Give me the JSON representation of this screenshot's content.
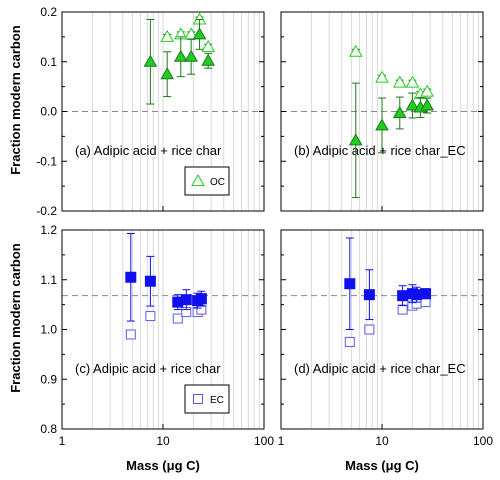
{
  "figure": {
    "ylabel_top": "Fraction modern carbon",
    "ylabel_bottom": "Fraction modern carbon",
    "xlabel_left": "Mass (μg C)",
    "xlabel_right": "Mass (μg C)"
  },
  "colors": {
    "oc": "#22cc22",
    "oc_edge": "#1a7a1a",
    "ec": "#1010ee",
    "ec_open": "#5a5aee",
    "grid": "#d9d9d9",
    "ref_line": "#888888"
  },
  "chart_data": [
    {
      "id": "a",
      "type": "scatter",
      "panel_label": "(a) Adipic acid + rice char",
      "xscale": "log",
      "xlim": [
        1,
        100
      ],
      "ylim": [
        -0.2,
        0.2
      ],
      "yticks": [
        -0.2,
        -0.1,
        0.0,
        0.1,
        0.2
      ],
      "ytick_labels": [
        "-0.2",
        "-0.1",
        "0.0",
        "0.1",
        "0.2"
      ],
      "xticks": [
        1,
        10,
        100
      ],
      "xtick_labels": [
        "",
        "",
        ""
      ],
      "reference_line": 0.0,
      "grid": "vertical",
      "legend": {
        "label": "OC",
        "marker": "open-triangle",
        "placement": "bottom-right"
      },
      "series": [
        {
          "marker": "filled-triangle",
          "color": "oc",
          "x": [
            7.5,
            11,
            15,
            19,
            23,
            28
          ],
          "y": [
            0.1,
            0.075,
            0.11,
            0.11,
            0.155,
            0.102
          ],
          "yerr": [
            0.085,
            0.045,
            0.04,
            0.035,
            0.03,
            0.015
          ]
        },
        {
          "marker": "open-triangle",
          "color": "oc",
          "x": [
            11,
            15,
            19,
            23,
            28
          ],
          "y": [
            0.15,
            0.155,
            0.155,
            0.185,
            0.13
          ],
          "yerr": [
            0.005,
            0.005,
            0.005,
            0.005,
            0.005
          ]
        }
      ]
    },
    {
      "id": "b",
      "type": "scatter",
      "panel_label": "(b) Adipic acid + rice char_EC",
      "xscale": "log",
      "xlim": [
        1,
        100
      ],
      "ylim": [
        -0.2,
        0.2
      ],
      "yticks": [
        -0.2,
        -0.1,
        0.0,
        0.1,
        0.2
      ],
      "ytick_labels": [
        "",
        "",
        "",
        "",
        ""
      ],
      "xticks": [
        1,
        10,
        100
      ],
      "xtick_labels": [
        "",
        "",
        ""
      ],
      "reference_line": 0.0,
      "grid": "vertical",
      "series": [
        {
          "marker": "filled-triangle",
          "color": "oc",
          "x": [
            5.5,
            10,
            15,
            20,
            24,
            28
          ],
          "y": [
            -0.058,
            -0.028,
            -0.003,
            0.012,
            0.008,
            0.012
          ],
          "yerr": [
            0.115,
            0.055,
            0.032,
            0.025,
            0.02,
            0.015
          ]
        },
        {
          "marker": "open-triangle",
          "color": "oc",
          "x": [
            5.5,
            10,
            15,
            20,
            24,
            28
          ],
          "y": [
            0.12,
            0.068,
            0.058,
            0.058,
            0.035,
            0.04
          ],
          "yerr": [
            0.005,
            0.005,
            0.005,
            0.005,
            0.005,
            0.005
          ]
        }
      ]
    },
    {
      "id": "c",
      "type": "scatter",
      "panel_label": "(c) Adipic acid + rice char",
      "xscale": "log",
      "xlim": [
        1,
        100
      ],
      "ylim": [
        0.8,
        1.2
      ],
      "yticks": [
        0.8,
        0.9,
        1.0,
        1.1,
        1.2
      ],
      "ytick_labels": [
        "0.8",
        "0.9",
        "1.0",
        "1.1",
        "1.2"
      ],
      "xticks": [
        1,
        10,
        100
      ],
      "xtick_labels": [
        "1",
        "10",
        "100"
      ],
      "reference_line": 1.068,
      "grid": "vertical",
      "legend": {
        "label": "EC",
        "marker": "open-square",
        "placement": "bottom-right"
      },
      "series": [
        {
          "marker": "filled-square",
          "color": "ec",
          "x": [
            4.8,
            7.5,
            14,
            17,
            22,
            24
          ],
          "y": [
            1.105,
            1.097,
            1.055,
            1.06,
            1.058,
            1.062
          ],
          "yerr": [
            0.088,
            0.05,
            0.015,
            0.02,
            0.015,
            0.015
          ]
        },
        {
          "marker": "open-square",
          "color": "ec",
          "x": [
            4.8,
            7.5,
            14,
            17,
            22,
            24
          ],
          "y": [
            0.99,
            1.027,
            1.022,
            1.035,
            1.035,
            1.04
          ],
          "yerr": [
            0.008,
            0.008,
            0.006,
            0.006,
            0.006,
            0.006
          ]
        }
      ]
    },
    {
      "id": "d",
      "type": "scatter",
      "panel_label": "(d) Adipic acid + rice char_EC",
      "xscale": "log",
      "xlim": [
        1,
        100
      ],
      "ylim": [
        0.8,
        1.2
      ],
      "yticks": [
        0.8,
        0.9,
        1.0,
        1.1,
        1.2
      ],
      "ytick_labels": [
        "",
        "",
        "",
        "",
        ""
      ],
      "xticks": [
        1,
        10,
        100
      ],
      "xtick_labels": [
        "1",
        "10",
        "100"
      ],
      "reference_line": 1.068,
      "grid": "vertical",
      "series": [
        {
          "marker": "filled-square",
          "color": "ec",
          "x": [
            4.8,
            7.5,
            16,
            20,
            22,
            27
          ],
          "y": [
            1.092,
            1.07,
            1.068,
            1.072,
            1.07,
            1.072
          ],
          "yerr": [
            0.092,
            0.05,
            0.02,
            0.018,
            0.015,
            0.01
          ]
        },
        {
          "marker": "open-square",
          "color": "ec",
          "x": [
            4.8,
            7.5,
            16,
            20,
            22,
            27
          ],
          "y": [
            0.975,
            1.0,
            1.04,
            1.048,
            1.052,
            1.055
          ],
          "yerr": [
            0.006,
            0.006,
            0.006,
            0.006,
            0.006,
            0.006
          ]
        }
      ]
    }
  ]
}
